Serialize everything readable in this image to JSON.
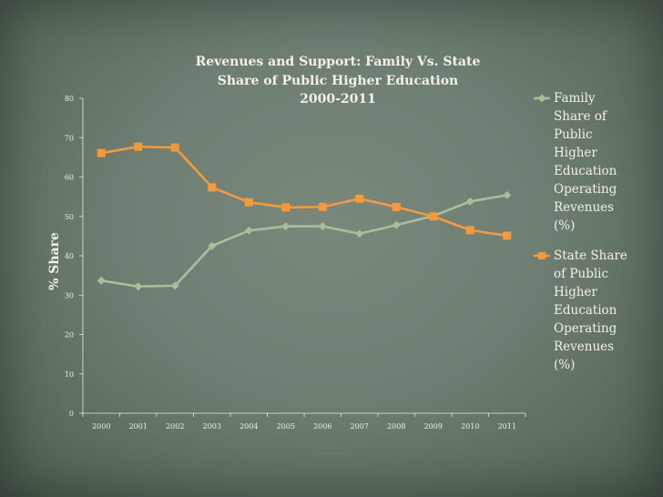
{
  "chart_data": {
    "type": "line",
    "title_lines": [
      "Revenues and Support: Family Vs. State",
      "Share of Public Higher Education",
      "2000-2011"
    ],
    "ylabel": "% Share",
    "xlabel": "",
    "categories": [
      "2000",
      "2001",
      "2002",
      "2003",
      "2004",
      "2005",
      "2006",
      "2007",
      "2008",
      "2009",
      "2010",
      "2011"
    ],
    "yticks": [
      "0",
      "10",
      "20",
      "30",
      "40",
      "50",
      "60",
      "70",
      "80"
    ],
    "ylim": [
      0,
      80
    ],
    "grid": false,
    "legend_position": "right",
    "series": [
      {
        "name": "Family Share of Public Higher Education Operating Revenues (%)",
        "legend_lines": [
          "Family",
          "Share of",
          "Public",
          "Higher",
          "Education",
          "Operating",
          "Revenues",
          "(%)"
        ],
        "marker": "diamond",
        "color": "#a7bf9a",
        "values": [
          33.7,
          32.2,
          32.4,
          42.5,
          46.4,
          47.5,
          47.5,
          45.6,
          47.8,
          50.1,
          53.8,
          55.4
        ]
      },
      {
        "name": "State Share of Public Higher Education Operating Revenues (%)",
        "legend_lines": [
          "State Share",
          "of Public",
          "Higher",
          "Education",
          "Operating",
          "Revenues",
          "(%)"
        ],
        "marker": "square",
        "color": "#f29a3c",
        "values": [
          66.1,
          67.7,
          67.5,
          57.4,
          53.6,
          52.3,
          52.4,
          54.5,
          52.4,
          50.0,
          46.5,
          45.1
        ]
      }
    ]
  },
  "colors": {
    "axis": "#e8e6d8",
    "background": "#6f7e72"
  }
}
